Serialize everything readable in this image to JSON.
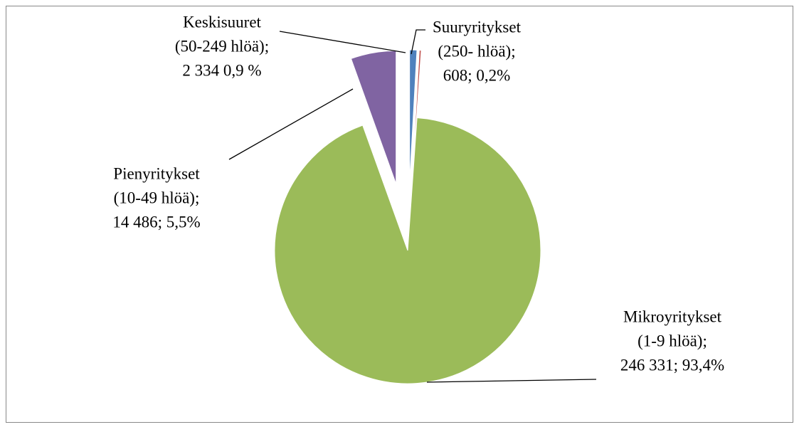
{
  "chart_data": {
    "type": "pie",
    "categories": [
      "Keskisuuret",
      "Suuryritykset",
      "Mikroyritykset",
      "Pienyritykset"
    ],
    "groups": [
      "(50-249 hlöä);",
      "(250- hlöä);",
      "(1-9 hlöä);",
      "(10-49 hlöä);"
    ],
    "values": [
      2334,
      608,
      246331,
      14486
    ],
    "value_labels": [
      "2 334 0,9 %",
      "608; 0,2%",
      "246 331; 93,4%",
      "14 486; 5,5%"
    ],
    "colors": [
      "#4f81bd",
      "#c0504d",
      "#9bbb59",
      "#8064a2"
    ],
    "exploded": [
      true,
      true,
      false,
      true
    ]
  }
}
